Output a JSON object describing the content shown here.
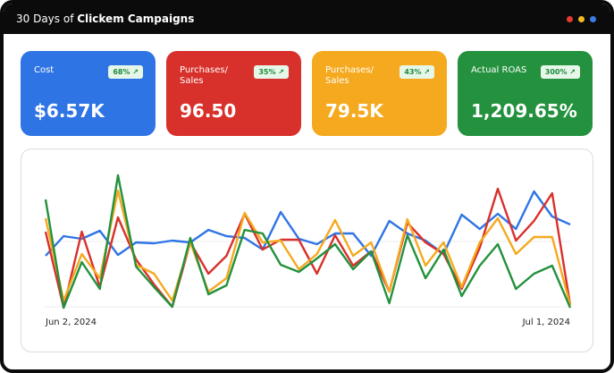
{
  "header": {
    "title": "30 Days of",
    "title_bold": "Clickem Campaigns"
  },
  "cards": [
    {
      "label": "Cost",
      "badge": "68%",
      "value": "$6.57K",
      "color": "#2f74e4"
    },
    {
      "label": "Purchases/ Sales",
      "badge": "35%",
      "value": "96.50",
      "color": "#d8302b"
    },
    {
      "label": "Purchases/ Sales",
      "badge": "43%",
      "value": "79.5K",
      "color": "#f5a91f"
    },
    {
      "label": "Actual ROAS",
      "badge": "300%",
      "value": "1,209.65%",
      "color": "#23913d"
    }
  ],
  "chart_data": {
    "type": "line",
    "categories": [
      "Jun 2, 2024",
      null,
      null,
      null,
      null,
      null,
      null,
      null,
      null,
      null,
      null,
      null,
      null,
      null,
      null,
      null,
      null,
      null,
      null,
      null,
      null,
      null,
      null,
      null,
      null,
      null,
      null,
      null,
      null,
      "Jul 1, 2024"
    ],
    "series": [
      {
        "color": "#2f74e4",
        "values": [
          65,
          87,
          84,
          93,
          66,
          80,
          79,
          82,
          80,
          94,
          87,
          85,
          72,
          114,
          84,
          78,
          90,
          90,
          65,
          104,
          90,
          82,
          67,
          111,
          95,
          112,
          95,
          137,
          109,
          100
        ]
      },
      {
        "color": "#d8302b",
        "values": [
          92,
          7,
          92,
          30,
          108,
          61,
          33,
          8,
          80,
          45,
          65,
          112,
          72,
          83,
          83,
          45,
          88,
          54,
          70,
          25,
          102,
          80,
          67,
          28,
          74,
          140,
          82,
          104,
          135,
          10
        ]
      },
      {
        "color": "#f5a91f",
        "values": [
          107,
          15,
          67,
          40,
          138,
          55,
          45,
          15,
          80,
          25,
          40,
          113,
          80,
          82,
          50,
          67,
          105,
          65,
          80,
          25,
          106,
          54,
          80,
          30,
          80,
          107,
          67,
          86,
          86,
          10
        ]
      },
      {
        "color": "#23913d",
        "values": [
          128,
          7,
          58,
          28,
          155,
          53,
          30,
          8,
          85,
          22,
          32,
          94,
          90,
          55,
          47,
          62,
          78,
          50,
          70,
          12,
          88,
          40,
          72,
          20,
          54,
          78,
          28,
          45,
          54,
          7
        ]
      }
    ]
  }
}
